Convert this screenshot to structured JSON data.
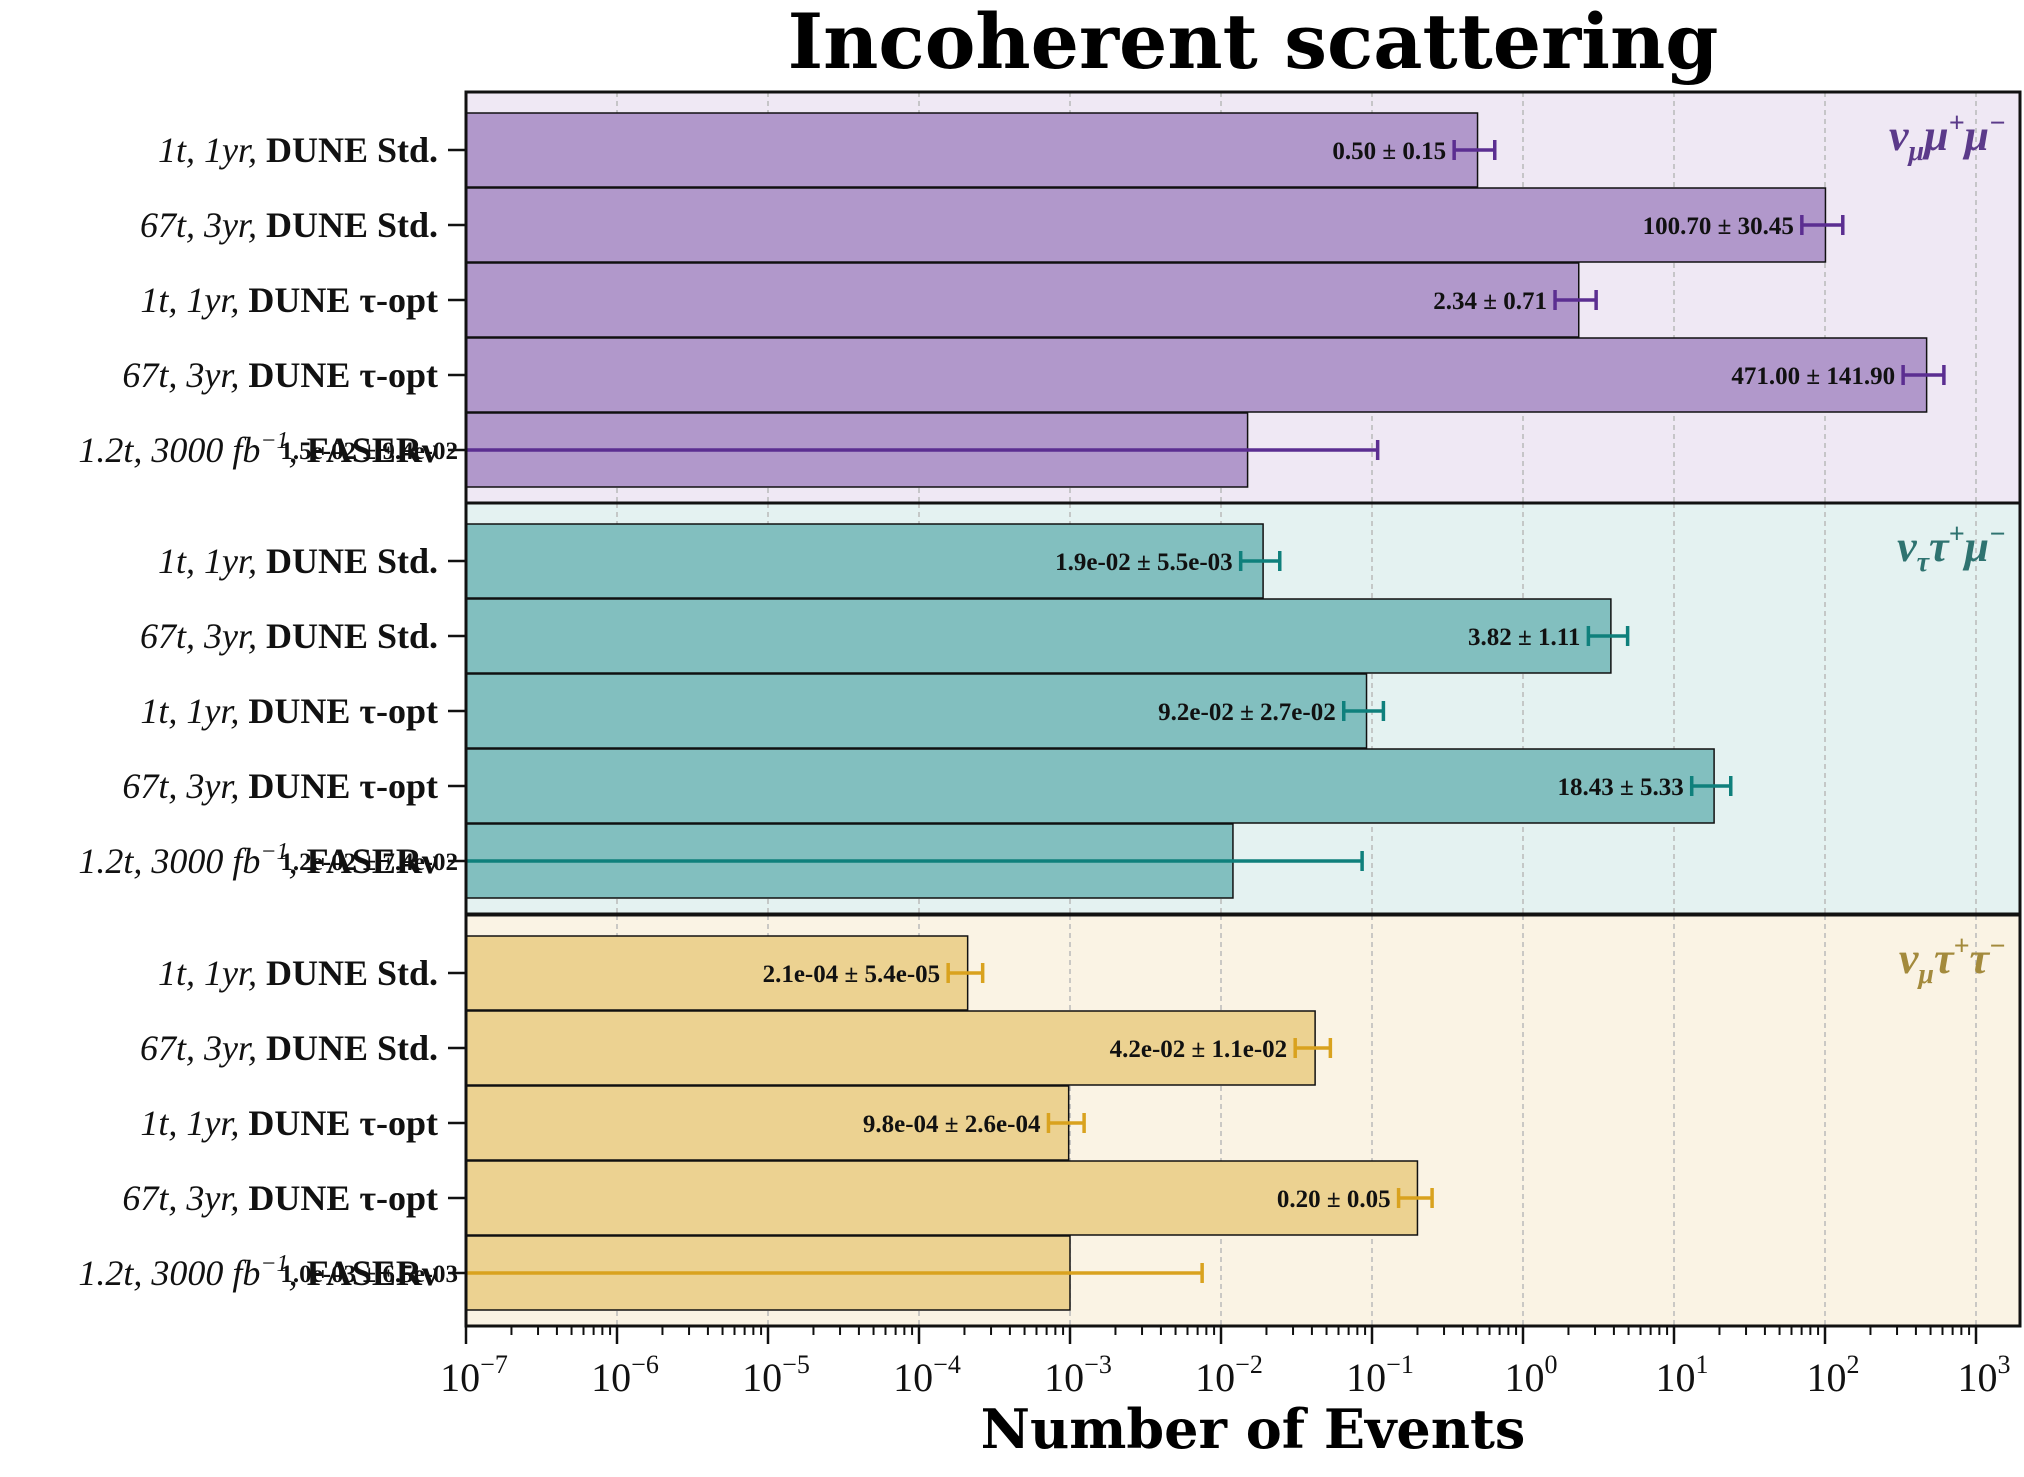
{
  "chart_data": {
    "type": "bar",
    "orientation": "horizontal",
    "title": "Incoherent scattering",
    "xlabel": "Number of Events",
    "xscale": "log",
    "xlim": [
      1e-07,
      2000
    ],
    "xticks": [
      {
        "base": "10",
        "exp": "−7",
        "value": 1e-07
      },
      {
        "base": "10",
        "exp": "−6",
        "value": 1e-06
      },
      {
        "base": "10",
        "exp": "−5",
        "value": 1e-05
      },
      {
        "base": "10",
        "exp": "−4",
        "value": 0.0001
      },
      {
        "base": "10",
        "exp": "−3",
        "value": 0.001
      },
      {
        "base": "10",
        "exp": "−2",
        "value": 0.01
      },
      {
        "base": "10",
        "exp": "−1",
        "value": 0.1
      },
      {
        "base": "10",
        "exp": "0",
        "value": 1
      },
      {
        "base": "10",
        "exp": "1",
        "value": 10
      },
      {
        "base": "10",
        "exp": "2",
        "value": 100
      },
      {
        "base": "10",
        "exp": "3",
        "value": 1000
      }
    ],
    "grid": "x-major",
    "panels": [
      {
        "name": "νμμ+μ−",
        "label": {
          "symbol": "ν",
          "sub": "μ",
          "rest": [
            {
              "t": "μ",
              "s": "+"
            },
            {
              "t": "μ",
              "s": "−"
            }
          ]
        },
        "bar_color": "#b198cb",
        "bg_color": "#efe8f4",
        "err_color": "#5b2e91",
        "label_color": "#5b3a8a",
        "bars": [
          {
            "label": {
              "italic": "1t, 1yr",
              "bold": "DUNE Std."
            },
            "value": 0.5,
            "error": 0.15,
            "text": "0.50 ± 0.15"
          },
          {
            "label": {
              "italic": "67t, 3yr",
              "bold": "DUNE Std."
            },
            "value": 100.7,
            "error": 30.45,
            "text": "100.70 ± 30.45"
          },
          {
            "label": {
              "italic": "1t, 1yr",
              "bold": "DUNE τ-opt"
            },
            "value": 2.34,
            "error": 0.71,
            "text": "2.34 ± 0.71"
          },
          {
            "label": {
              "italic": "67t, 3yr",
              "bold": "DUNE τ-opt"
            },
            "value": 471.0,
            "error": 141.9,
            "text": "471.00 ± 141.90"
          },
          {
            "label": {
              "italic": "1.2t, 3000 fb",
              "sup": "−1",
              "bold": "FASERν"
            },
            "value": 0.015,
            "error": 0.094,
            "text": "1.5e-02 ± 9.4e-02"
          }
        ]
      },
      {
        "name": "νττ+μ−",
        "label": {
          "symbol": "ν",
          "sub": "τ",
          "rest": [
            {
              "t": "τ",
              "s": "+"
            },
            {
              "t": "μ",
              "s": "−"
            }
          ]
        },
        "bar_color": "#82bfbf",
        "bg_color": "#e4f2f1",
        "err_color": "#0f807c",
        "label_color": "#2e7370",
        "bars": [
          {
            "label": {
              "italic": "1t, 1yr",
              "bold": "DUNE Std."
            },
            "value": 0.019,
            "error": 0.0055,
            "text": "1.9e-02 ± 5.5e-03"
          },
          {
            "label": {
              "italic": "67t, 3yr",
              "bold": "DUNE Std."
            },
            "value": 3.82,
            "error": 1.11,
            "text": "3.82 ± 1.11"
          },
          {
            "label": {
              "italic": "1t, 1yr",
              "bold": "DUNE τ-opt"
            },
            "value": 0.092,
            "error": 0.027,
            "text": "9.2e-02 ± 2.7e-02"
          },
          {
            "label": {
              "italic": "67t, 3yr",
              "bold": "DUNE τ-opt"
            },
            "value": 18.43,
            "error": 5.33,
            "text": "18.43 ± 5.33"
          },
          {
            "label": {
              "italic": "1.2t, 3000 fb",
              "sup": "−1",
              "bold": "FASERν"
            },
            "value": 0.012,
            "error": 0.074,
            "text": "1.2e-02 ± 7.4e-02"
          }
        ]
      },
      {
        "name": "νμτ+τ−",
        "label": {
          "symbol": "ν",
          "sub": "μ",
          "rest": [
            {
              "t": "τ",
              "s": "+"
            },
            {
              "t": "τ",
              "s": "−"
            }
          ]
        },
        "bar_color": "#ecd291",
        "bg_color": "#faf3e4",
        "err_color": "#d9a21e",
        "label_color": "#a38a3c",
        "bars": [
          {
            "label": {
              "italic": "1t, 1yr",
              "bold": "DUNE Std."
            },
            "value": 0.00021,
            "error": 5.4e-05,
            "text": "2.1e-04 ± 5.4e-05"
          },
          {
            "label": {
              "italic": "67t, 3yr",
              "bold": "DUNE Std."
            },
            "value": 0.042,
            "error": 0.011,
            "text": "4.2e-02 ± 1.1e-02"
          },
          {
            "label": {
              "italic": "1t, 1yr",
              "bold": "DUNE τ-opt"
            },
            "value": 0.00098,
            "error": 0.00026,
            "text": "9.8e-04 ± 2.6e-04"
          },
          {
            "label": {
              "italic": "67t, 3yr",
              "bold": "DUNE τ-opt"
            },
            "value": 0.2,
            "error": 0.05,
            "text": "0.20 ± 0.05"
          },
          {
            "label": {
              "italic": "1.2t, 3000 fb",
              "sup": "−1",
              "bold": "FASERν"
            },
            "value": 0.001,
            "error": 0.0065,
            "text": "1.0e-03 ± 6.5e-03"
          }
        ]
      }
    ]
  }
}
